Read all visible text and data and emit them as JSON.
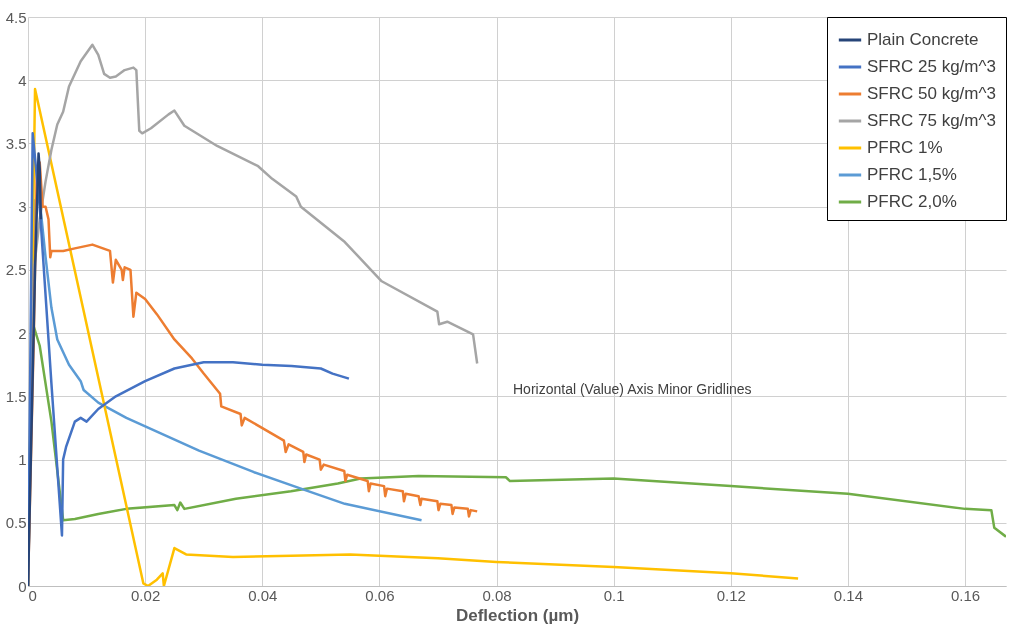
{
  "chart_data": {
    "type": "line",
    "xlabel": "Deflection (µm)",
    "xlim": [
      0,
      0.167
    ],
    "xticks": [
      0,
      0.02,
      0.04,
      0.06,
      0.08,
      0.1,
      0.12,
      0.14,
      0.16
    ],
    "ylim": [
      0,
      4.5
    ],
    "yticks": [
      0,
      0.5,
      1,
      1.5,
      2,
      2.5,
      3,
      3.5,
      4,
      4.5
    ],
    "grid": true,
    "legend": "top right",
    "marker": "none",
    "line_style": "solid",
    "annotations": [
      "Horizontal (Value) Axis Minor Gridlines"
    ],
    "series": [
      {
        "name": "Plain Concrete",
        "color": "#264478",
        "x": [
          0,
          0.0012,
          0.0018,
          0.002,
          0.0022
        ],
        "values": [
          0,
          2.5,
          3.42,
          3.3,
          2.9
        ]
      },
      {
        "name": "SFRC 25 kg/m^3",
        "color": "#4472c4",
        "x": [
          0,
          0.0008,
          0.002,
          0.004,
          0.0058,
          0.006,
          0.0065,
          0.008,
          0.009,
          0.01,
          0.012,
          0.015,
          0.02,
          0.025,
          0.03,
          0.035,
          0.04,
          0.045,
          0.05,
          0.052,
          0.0548
        ],
        "values": [
          0,
          3.58,
          3.0,
          1.6,
          0.4,
          1.0,
          1.1,
          1.3,
          1.33,
          1.3,
          1.4,
          1.5,
          1.62,
          1.72,
          1.77,
          1.77,
          1.75,
          1.74,
          1.72,
          1.68,
          1.64
        ]
      },
      {
        "name": "SFRC 50 kg/m^3",
        "color": "#ed7d31",
        "x": [
          0,
          0.001,
          0.0015,
          0.002,
          0.0025,
          0.003,
          0.0035,
          0.0038,
          0.004,
          0.006,
          0.008,
          0.011,
          0.014,
          0.0145,
          0.015,
          0.016,
          0.0162,
          0.0165,
          0.0175,
          0.018,
          0.0185,
          0.02,
          0.022,
          0.025,
          0.028,
          0.03,
          0.0328,
          0.033,
          0.0363,
          0.0365,
          0.037,
          0.0437,
          0.044,
          0.0445,
          0.047,
          0.0472,
          0.0475,
          0.0498,
          0.05,
          0.0505,
          0.054,
          0.0542,
          0.0545,
          0.058,
          0.0582,
          0.0585,
          0.0608,
          0.061,
          0.0613,
          0.064,
          0.0642,
          0.0645,
          0.0667,
          0.067,
          0.0672,
          0.0699,
          0.0701,
          0.0704,
          0.0723,
          0.0725,
          0.0728,
          0.0751,
          0.0753,
          0.0756,
          0.0767
        ],
        "values": [
          0,
          2.0,
          3.3,
          3.35,
          3.0,
          3.0,
          2.9,
          2.6,
          2.65,
          2.65,
          2.67,
          2.7,
          2.65,
          2.4,
          2.58,
          2.5,
          2.42,
          2.52,
          2.5,
          2.13,
          2.32,
          2.27,
          2.15,
          1.95,
          1.8,
          1.68,
          1.52,
          1.42,
          1.36,
          1.27,
          1.33,
          1.15,
          1.06,
          1.12,
          1.06,
          0.98,
          1.04,
          1.0,
          0.92,
          0.96,
          0.91,
          0.83,
          0.88,
          0.83,
          0.75,
          0.81,
          0.79,
          0.71,
          0.77,
          0.75,
          0.67,
          0.73,
          0.71,
          0.64,
          0.69,
          0.67,
          0.6,
          0.65,
          0.64,
          0.57,
          0.62,
          0.61,
          0.55,
          0.6,
          0.59
        ]
      },
      {
        "name": "SFRC 75 kg/m^3",
        "color": "#a5a5a5",
        "x": [
          0,
          0.001,
          0.002,
          0.003,
          0.004,
          0.005,
          0.006,
          0.007,
          0.009,
          0.011,
          0.012,
          0.013,
          0.014,
          0.015,
          0.0165,
          0.018,
          0.0185,
          0.019,
          0.0195,
          0.021,
          0.024,
          0.025,
          0.0267,
          0.0323,
          0.0393,
          0.0417,
          0.0458,
          0.0466,
          0.0541,
          0.0604,
          0.0699,
          0.0702,
          0.0716,
          0.076,
          0.0767
        ],
        "values": [
          0,
          2.5,
          2.9,
          3.2,
          3.45,
          3.65,
          3.75,
          3.95,
          4.15,
          4.28,
          4.2,
          4.05,
          4.02,
          4.03,
          4.08,
          4.1,
          4.08,
          3.6,
          3.58,
          3.62,
          3.73,
          3.76,
          3.64,
          3.48,
          3.32,
          3.22,
          3.08,
          3.0,
          2.72,
          2.41,
          2.17,
          2.07,
          2.09,
          1.99,
          1.76
        ]
      },
      {
        "name": "PFRC 1%",
        "color": "#ffc000",
        "x": [
          0,
          0.0012,
          0.0197,
          0.0205,
          0.022,
          0.023,
          0.0232,
          0.025,
          0.027,
          0.035,
          0.045,
          0.055,
          0.07,
          0.08,
          0.1,
          0.12,
          0.1315
        ],
        "values": [
          0,
          3.93,
          0.02,
          0.0,
          0.05,
          0.1,
          0.0,
          0.3,
          0.25,
          0.23,
          0.24,
          0.25,
          0.22,
          0.19,
          0.15,
          0.1,
          0.06
        ]
      },
      {
        "name": "PFRC 1,5%",
        "color": "#5b9bd5",
        "x": [
          0,
          0.0008,
          0.0012,
          0.002,
          0.003,
          0.004,
          0.005,
          0.007,
          0.009,
          0.0095,
          0.012,
          0.0168,
          0.0292,
          0.0386,
          0.0466,
          0.0541,
          0.0672
        ],
        "values": [
          0,
          2.0,
          3.05,
          3.05,
          2.6,
          2.2,
          1.95,
          1.75,
          1.62,
          1.55,
          1.45,
          1.33,
          1.07,
          0.9,
          0.77,
          0.65,
          0.52
        ]
      },
      {
        "name": "PFRC 2,0%",
        "color": "#70ad47",
        "x": [
          0,
          0.0005,
          0.001,
          0.002,
          0.004,
          0.006,
          0.008,
          0.012,
          0.0168,
          0.025,
          0.0255,
          0.026,
          0.0267,
          0.0355,
          0.0449,
          0.0529,
          0.0568,
          0.0667,
          0.0816,
          0.0823,
          0.1,
          0.12,
          0.14,
          0.16,
          0.1645,
          0.165,
          0.167
        ],
        "values": [
          0,
          1.5,
          2.05,
          1.9,
          1.3,
          0.52,
          0.53,
          0.57,
          0.61,
          0.64,
          0.6,
          0.66,
          0.61,
          0.69,
          0.75,
          0.81,
          0.85,
          0.87,
          0.86,
          0.83,
          0.85,
          0.79,
          0.73,
          0.61,
          0.6,
          0.46,
          0.39
        ]
      }
    ]
  }
}
